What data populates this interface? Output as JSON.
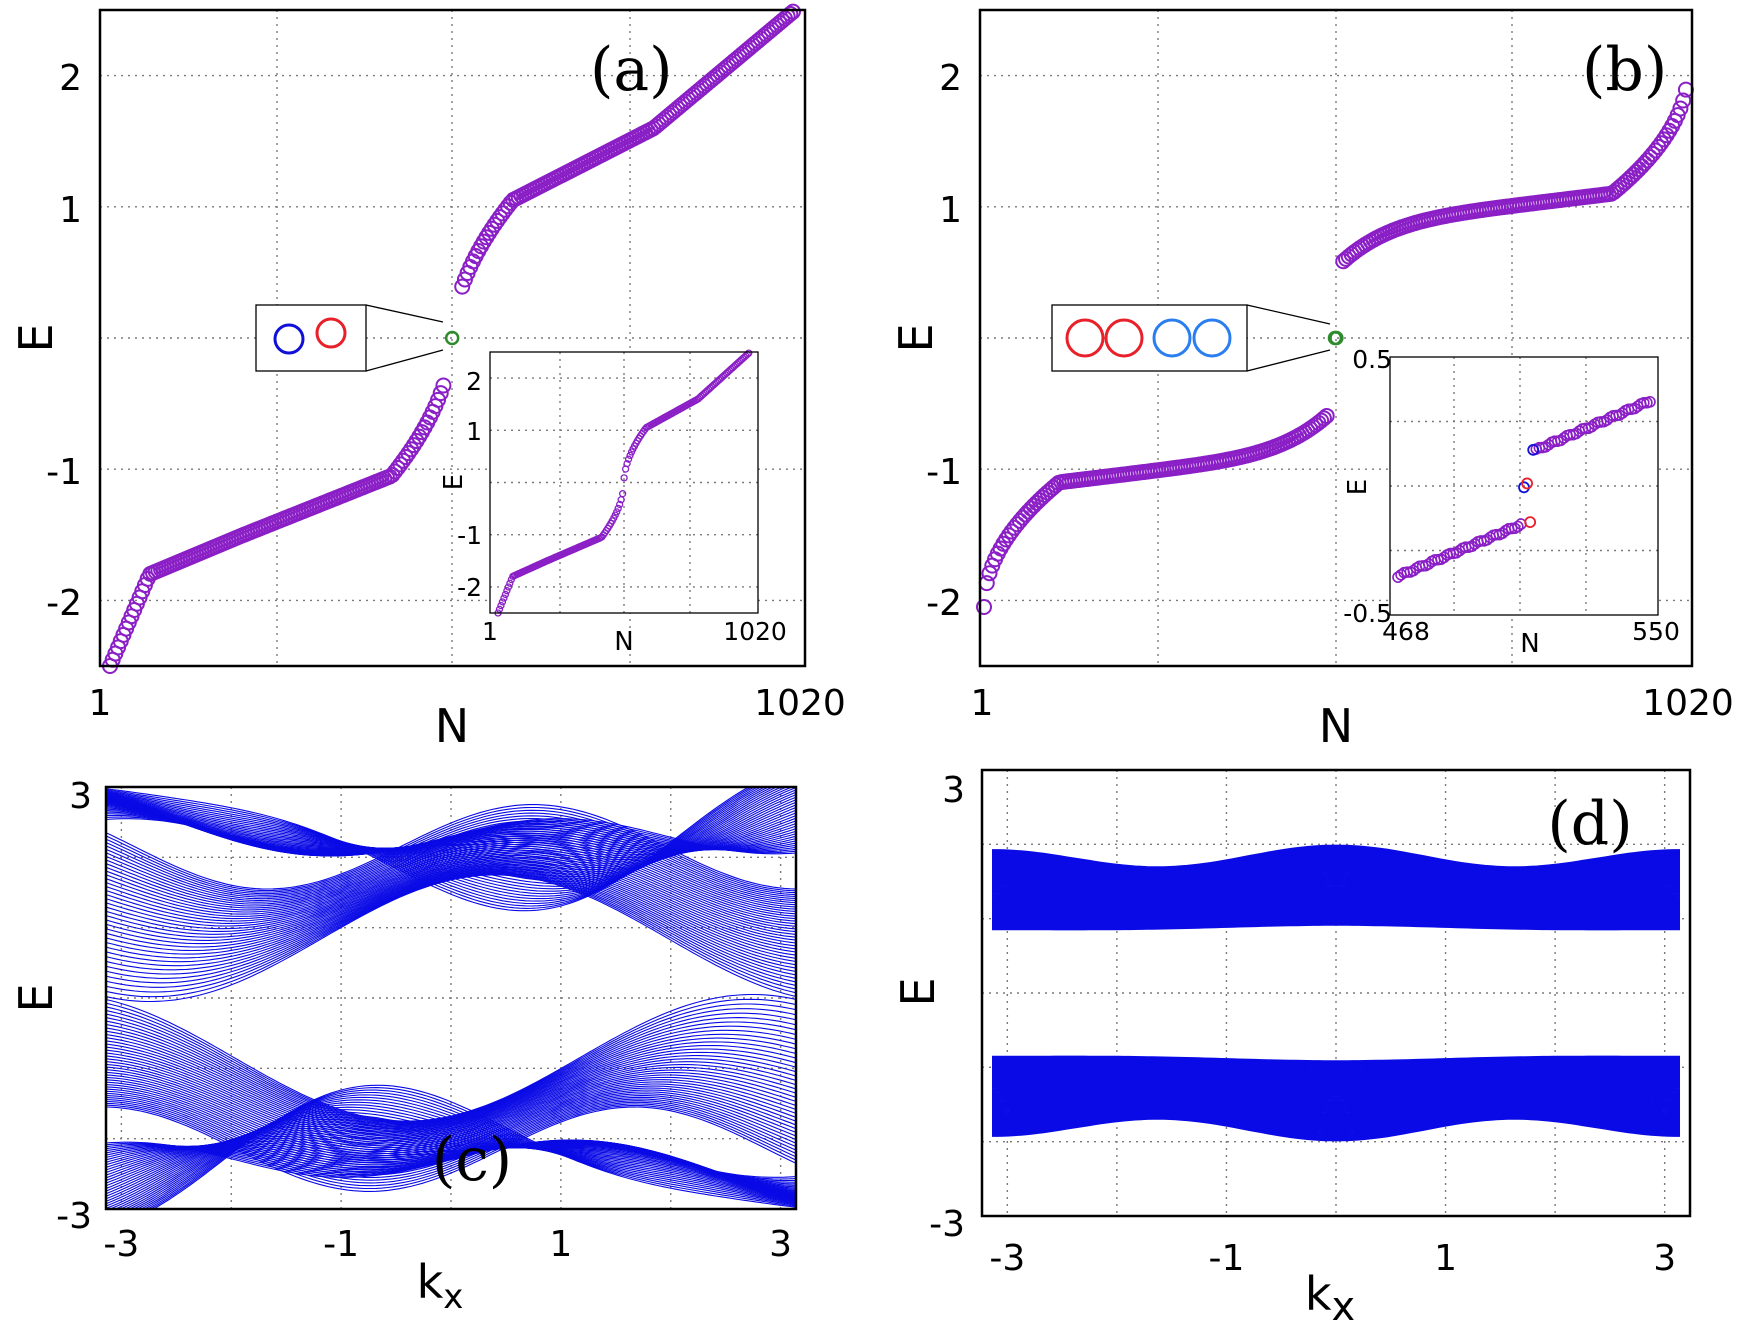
{
  "colors": {
    "points": "#8b1fc6",
    "zero_modes": "#2e8b2e",
    "bands": "#0a0ae6",
    "red": "#e8202a",
    "blue": "#1010d8",
    "light_blue": "#2a7ef0"
  },
  "chart_data": [
    {
      "panel": "a",
      "label": "(a)",
      "type": "scatter",
      "xlabel": "N",
      "ylabel": "E",
      "xticks": [
        "1",
        "1020"
      ],
      "yticks": [
        "-2",
        "-1",
        "1",
        "2"
      ],
      "xlim": [
        1,
        1020
      ],
      "ylim": [
        -2.5,
        2.5
      ],
      "series_knots": {
        "x": [
          1,
          60,
          200,
          420,
          510,
          600,
          810,
          1020
        ],
        "y": [
          -2.5,
          -1.8,
          -1.5,
          -1.05,
          0,
          1.05,
          1.6,
          2.5
        ]
      },
      "zero_modes": [
        {
          "x": 510,
          "y": 0
        }
      ],
      "legend_box": {
        "markers": [
          "blue",
          "red"
        ]
      },
      "inset": {
        "xlabel": "N",
        "ylabel": "E",
        "xticks": [
          "1",
          "1020"
        ],
        "yticks": [
          "-2",
          "-1",
          "1",
          "2"
        ],
        "xlim": [
          1,
          1020
        ],
        "ylim": [
          -2.5,
          2.5
        ]
      }
    },
    {
      "panel": "b",
      "label": "(b)",
      "type": "scatter",
      "xlabel": "N",
      "ylabel": "E",
      "xticks": [
        "1",
        "1020"
      ],
      "yticks": [
        "-2",
        "-1",
        "1",
        "2"
      ],
      "xlim": [
        1,
        1020
      ],
      "ylim": [
        -2.5,
        2.5
      ],
      "series_knots": {
        "x": [
          1,
          110,
          490,
          508,
          512,
          530,
          910,
          1020
        ],
        "y": [
          -2.05,
          -1.1,
          -0.58,
          -0.5,
          0.42,
          0.45,
          1.1,
          2.05
        ]
      },
      "zero_modes": [
        {
          "x": 509,
          "y": 0
        },
        {
          "x": 511,
          "y": 0
        }
      ],
      "legend_box": {
        "markers": [
          "red",
          "red",
          "light_blue",
          "light_blue"
        ]
      },
      "inset": {
        "xlabel": "N",
        "ylabel": "E",
        "xticks": [
          "468",
          "550"
        ],
        "yticks": [
          "0.5",
          "-0.5"
        ],
        "xlim": [
          468,
          550
        ],
        "ylim": [
          -0.5,
          0.5
        ],
        "lower_branch": {
          "x": [
            468,
            508
          ],
          "y": [
            -0.35,
            -0.15
          ]
        },
        "upper_branch": {
          "x": [
            513,
            550
          ],
          "y": [
            0.14,
            0.33
          ]
        },
        "zero_modes": [
          {
            "x": 509,
            "y": -0.005,
            "color": "blue"
          },
          {
            "x": 510,
            "y": 0.01,
            "color": "red"
          },
          {
            "x": 511,
            "y": -0.14,
            "color": "red"
          },
          {
            "x": 512,
            "y": 0.14,
            "color": "blue"
          }
        ]
      }
    },
    {
      "panel": "c",
      "label": "(c)",
      "type": "line",
      "xlabel": "k",
      "xlabel_sub": "x",
      "ylabel": "E",
      "xticks": [
        "-3",
        "-1",
        "1",
        "3"
      ],
      "xtick_values": [
        -3,
        -1,
        1,
        3
      ],
      "yticks": [
        "3",
        "-3"
      ],
      "ytick_values": [
        3,
        -3
      ],
      "xlim": [
        -3.14,
        3.14
      ],
      "ylim": [
        -3,
        3
      ],
      "n_bands": 40
    },
    {
      "panel": "d",
      "label": "(d)",
      "type": "line",
      "xlabel": "k",
      "xlabel_sub": "x",
      "ylabel": "E",
      "xticks": [
        "-3",
        "-1",
        "1",
        "3"
      ],
      "xtick_values": [
        -3,
        -1,
        1,
        3
      ],
      "yticks": [
        "3",
        "-3"
      ],
      "ytick_values": [
        3,
        -3
      ],
      "xlim": [
        -3.14,
        3.14
      ],
      "ylim": [
        -3,
        3
      ],
      "n_bands": 40
    }
  ]
}
